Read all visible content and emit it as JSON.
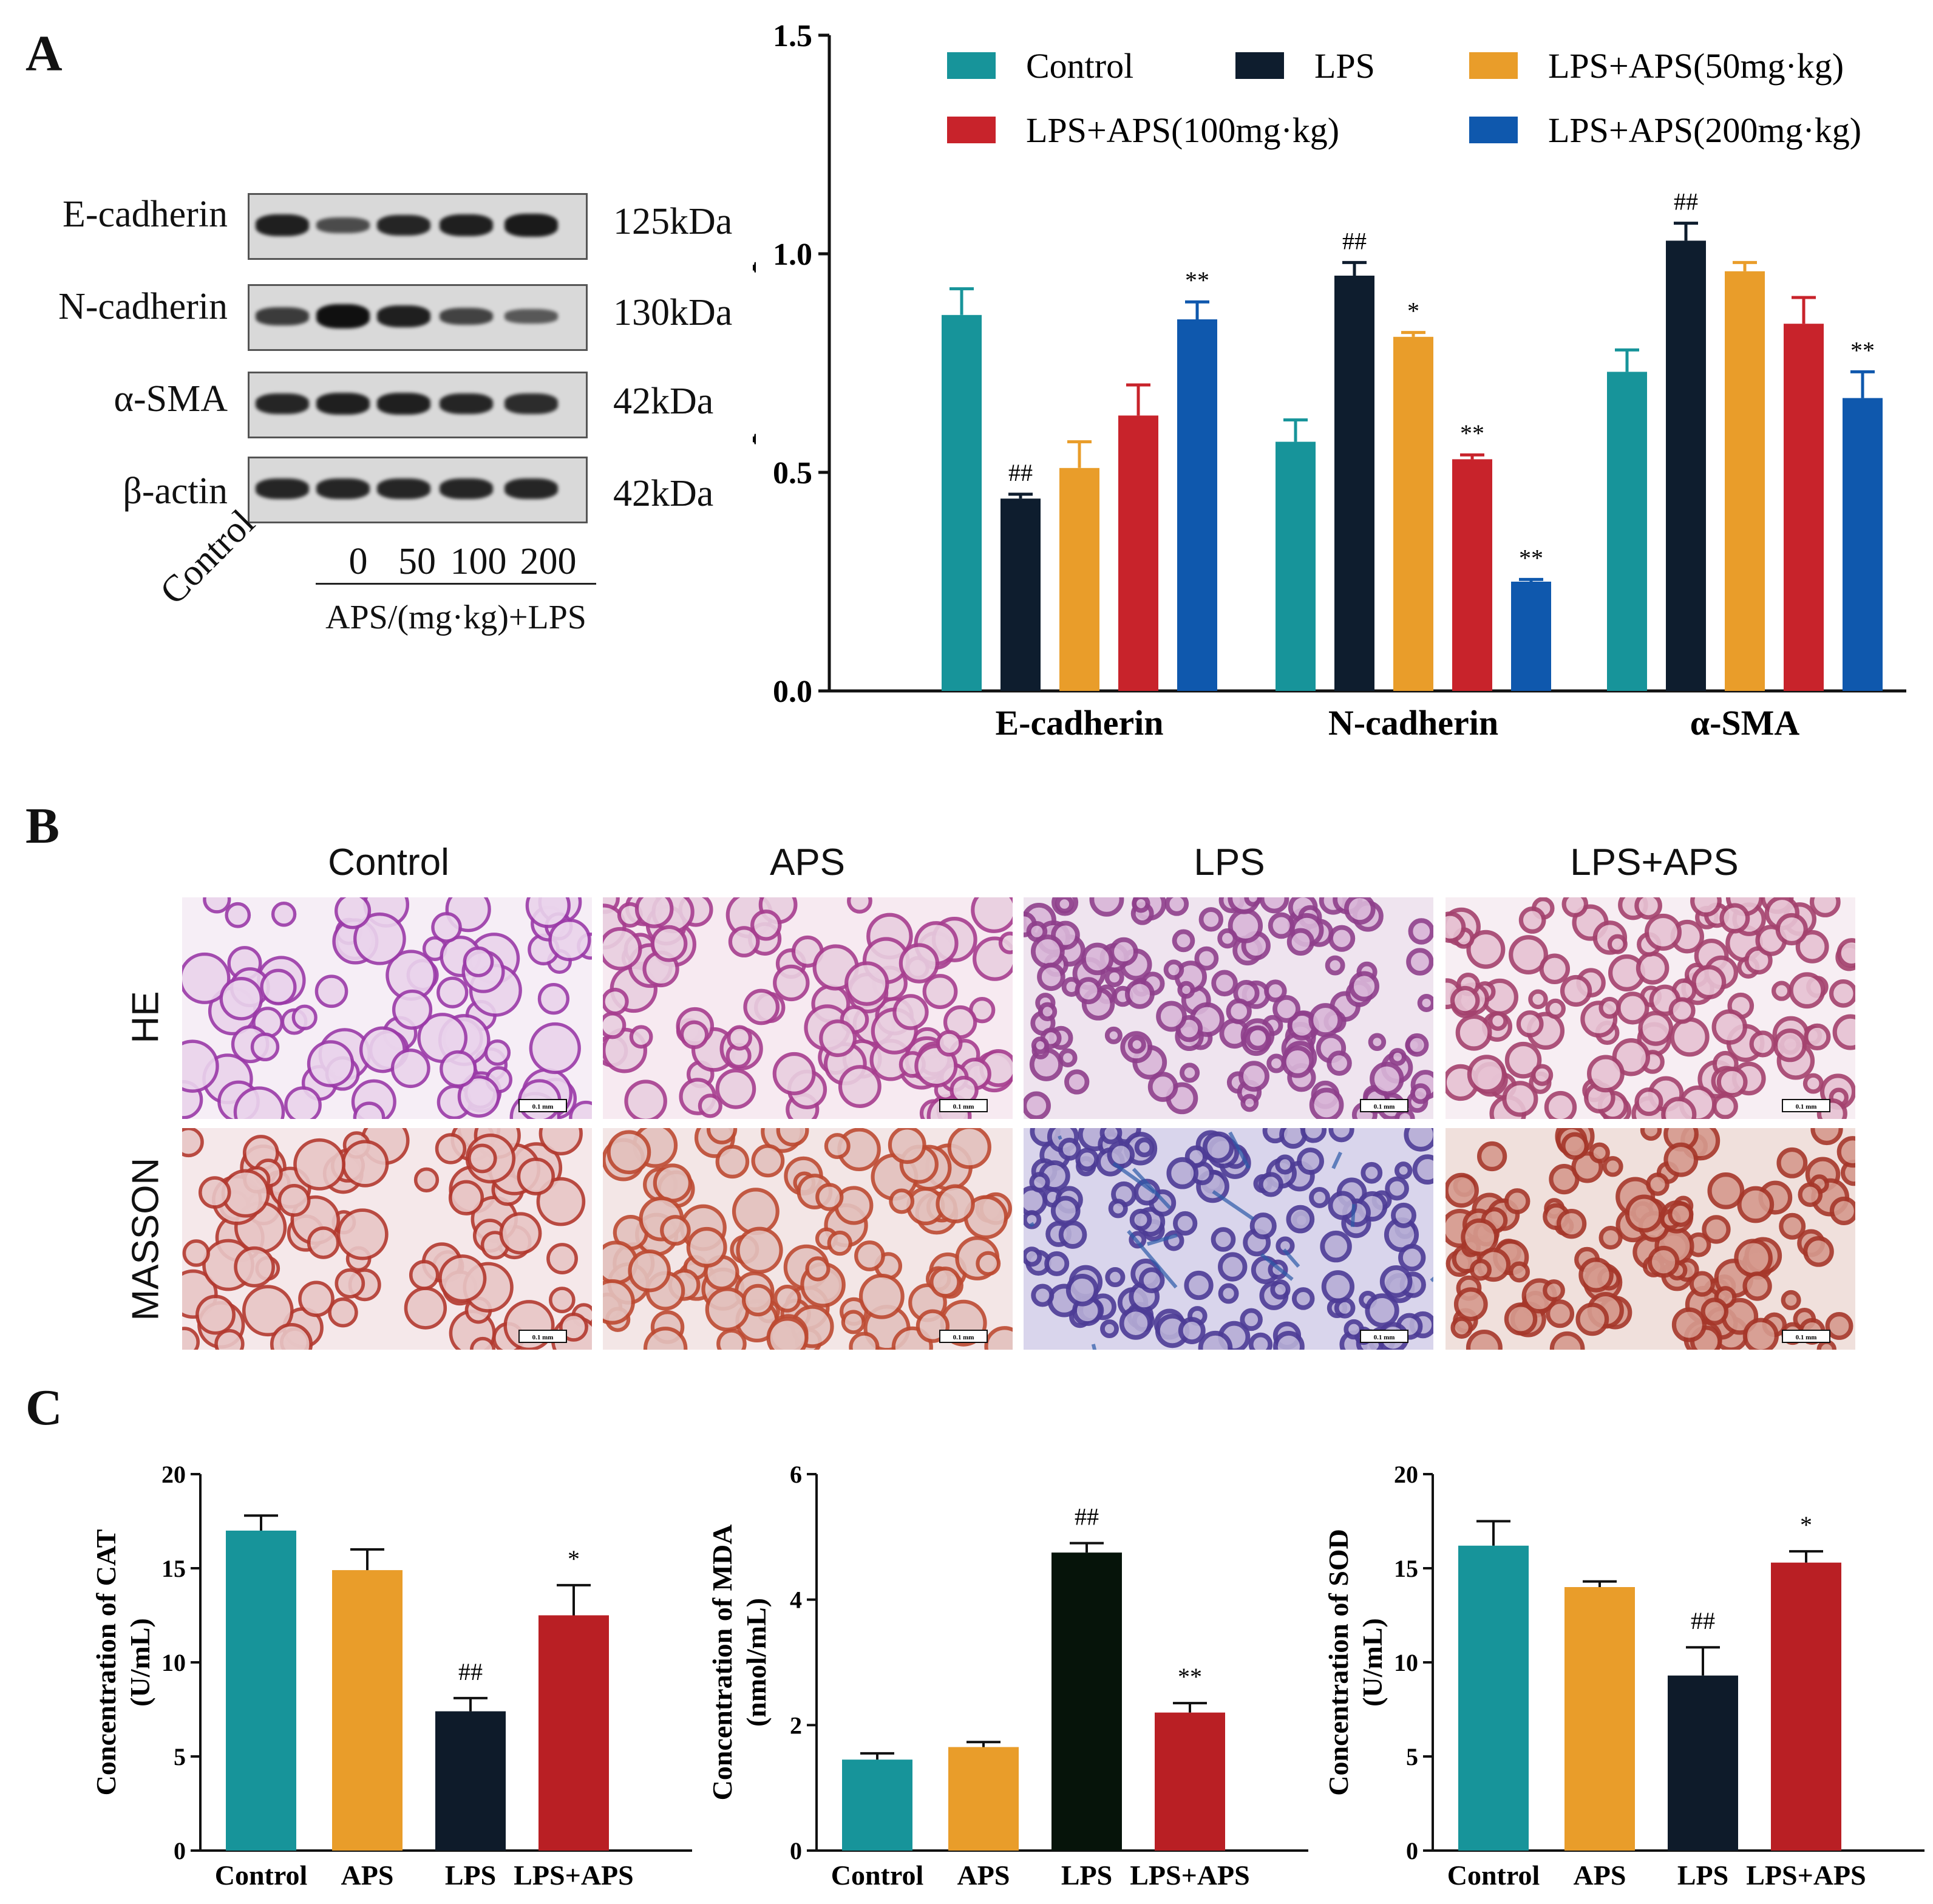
{
  "panels": {
    "a": "A",
    "b": "B",
    "c": "C"
  },
  "western_blot": {
    "proteins": [
      {
        "name": "E-cadherin",
        "kda": "125kDa",
        "intensity": [
          0.85,
          0.45,
          0.8,
          0.85,
          0.9
        ]
      },
      {
        "name": "N-cadherin",
        "kda": "130kDa",
        "intensity": [
          0.6,
          1.0,
          0.85,
          0.55,
          0.35
        ]
      },
      {
        "name": "α-SMA",
        "kda": "42kDa",
        "intensity": [
          0.8,
          0.85,
          0.85,
          0.8,
          0.75
        ]
      },
      {
        "name": "β-actin",
        "kda": "42kDa",
        "intensity": [
          0.8,
          0.8,
          0.8,
          0.8,
          0.8
        ]
      }
    ],
    "control_label": "Control",
    "doses": [
      "0",
      "50",
      "100",
      "200"
    ],
    "dose_caption": "APS/(mg·kg)+LPS"
  },
  "histology": {
    "columns": [
      "Control",
      "APS",
      "LPS",
      "LPS+APS"
    ],
    "rows": [
      "HE",
      "MASSON"
    ],
    "scale_bar": "0.1 mm"
  },
  "chart_data": [
    {
      "type": "bar",
      "panel": "A",
      "ylabel": "Relative protein expression",
      "ylim": [
        0,
        1.5
      ],
      "yticks": [
        "0.0",
        "0.5",
        "1.0",
        "1.5"
      ],
      "categories": [
        "E-cadherin",
        "N-cadherin",
        "α-SMA"
      ],
      "legend": "top",
      "series": [
        {
          "name": "Control",
          "color": "#17949a",
          "values": [
            0.86,
            0.57,
            0.73
          ],
          "errors": [
            0.06,
            0.05,
            0.05
          ],
          "marks": [
            "",
            "",
            ""
          ]
        },
        {
          "name": "LPS",
          "color": "#0e1d2e",
          "values": [
            0.44,
            0.95,
            1.03
          ],
          "errors": [
            0.01,
            0.03,
            0.04
          ],
          "marks": [
            "##",
            "##",
            "##"
          ]
        },
        {
          "name": "LPS+APS(50mg·kg)",
          "color": "#e99d2a",
          "values": [
            0.51,
            0.81,
            0.96
          ],
          "errors": [
            0.06,
            0.01,
            0.02
          ],
          "marks": [
            "",
            "*",
            ""
          ]
        },
        {
          "name": "LPS+APS(100mg·kg)",
          "color": "#c8232b",
          "values": [
            0.63,
            0.53,
            0.84
          ],
          "errors": [
            0.07,
            0.01,
            0.06
          ],
          "marks": [
            "",
            "**",
            ""
          ]
        },
        {
          "name": "LPS+APS(200mg·kg)",
          "color": "#0f58ad",
          "values": [
            0.85,
            0.25,
            0.67
          ],
          "errors": [
            0.04,
            0.005,
            0.06
          ],
          "marks": [
            "**",
            "**",
            "**"
          ]
        }
      ]
    },
    {
      "type": "bar",
      "panel": "C",
      "ylabel": [
        "Concentration of CAT",
        "(U/mL)"
      ],
      "ylim": [
        0,
        20
      ],
      "yticks": [
        "0",
        "5",
        "10",
        "15",
        "20"
      ],
      "categories": [
        "Control",
        "APS",
        "LPS",
        "LPS+APS"
      ],
      "values": [
        17.0,
        14.9,
        7.4,
        12.5
      ],
      "errors": [
        0.8,
        1.1,
        0.7,
        1.6
      ],
      "marks": [
        "",
        "",
        "##",
        "*"
      ],
      "colors": [
        "#17949a",
        "#e99d2a",
        "#0e1b2a",
        "#b91f24"
      ]
    },
    {
      "type": "bar",
      "panel": "C",
      "ylabel": [
        "Concentration of MDA",
        "(nmol/mL)"
      ],
      "ylim": [
        0,
        6
      ],
      "yticks": [
        "0",
        "2",
        "4",
        "6"
      ],
      "categories": [
        "Control",
        "APS",
        "LPS",
        "LPS+APS"
      ],
      "values": [
        1.45,
        1.65,
        4.75,
        2.2
      ],
      "errors": [
        0.1,
        0.08,
        0.15,
        0.15
      ],
      "marks": [
        "",
        "",
        "##",
        "**"
      ],
      "colors": [
        "#17949a",
        "#e99d2a",
        "#06140a",
        "#b91f24"
      ]
    },
    {
      "type": "bar",
      "panel": "C",
      "ylabel": [
        "Concentration of SOD",
        "(U/mL)"
      ],
      "ylim": [
        0,
        20
      ],
      "yticks": [
        "0",
        "5",
        "10",
        "15",
        "20"
      ],
      "categories": [
        "Control",
        "APS",
        "LPS",
        "LPS+APS"
      ],
      "values": [
        16.2,
        14.0,
        9.3,
        15.3
      ],
      "errors": [
        1.3,
        0.3,
        1.5,
        0.6
      ],
      "marks": [
        "",
        "",
        "##",
        "*"
      ],
      "colors": [
        "#17949a",
        "#e99d2a",
        "#0e1b2a",
        "#b91f24"
      ]
    }
  ]
}
